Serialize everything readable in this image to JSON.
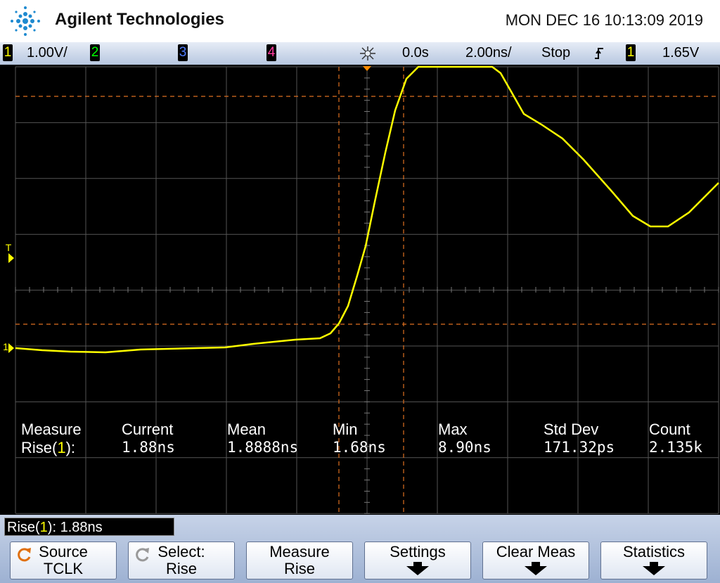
{
  "header": {
    "brand": "Agilent Technologies",
    "datetime": "MON DEC 16 10:13:09 2019"
  },
  "status": {
    "ch1": "1",
    "ch1_scale": "1.00V/",
    "ch2": "2",
    "ch3": "3",
    "ch4": "4",
    "delay": "0.0s",
    "timebase": "2.00ns/",
    "run_state": "Stop",
    "trigger_source": "1",
    "trigger_level": "1.65V"
  },
  "markers": {
    "trigger": "T",
    "channel": "1"
  },
  "measurements": {
    "headers": [
      "Measure",
      "Current",
      "Mean",
      "Min",
      "Max",
      "Std Dev",
      "Count"
    ],
    "row_label": {
      "prefix": "Rise(",
      "channel": "1",
      "suffix": "):"
    },
    "values": [
      "1.88ns",
      "1.8888ns",
      "1.68ns",
      "8.90ns",
      "171.32ps",
      "2.135k"
    ]
  },
  "status_line": {
    "prefix": "Rise(",
    "channel": "1",
    "suffix": "): 1.88ns"
  },
  "softkeys": [
    {
      "line1": "Source",
      "line2": "TCLK"
    },
    {
      "line1": "Select:",
      "line2": "Rise"
    },
    {
      "line1": "Measure",
      "line2": "Rise"
    },
    {
      "line1": "Settings"
    },
    {
      "line1": "Clear Meas"
    },
    {
      "line1": "Statistics"
    }
  ]
}
